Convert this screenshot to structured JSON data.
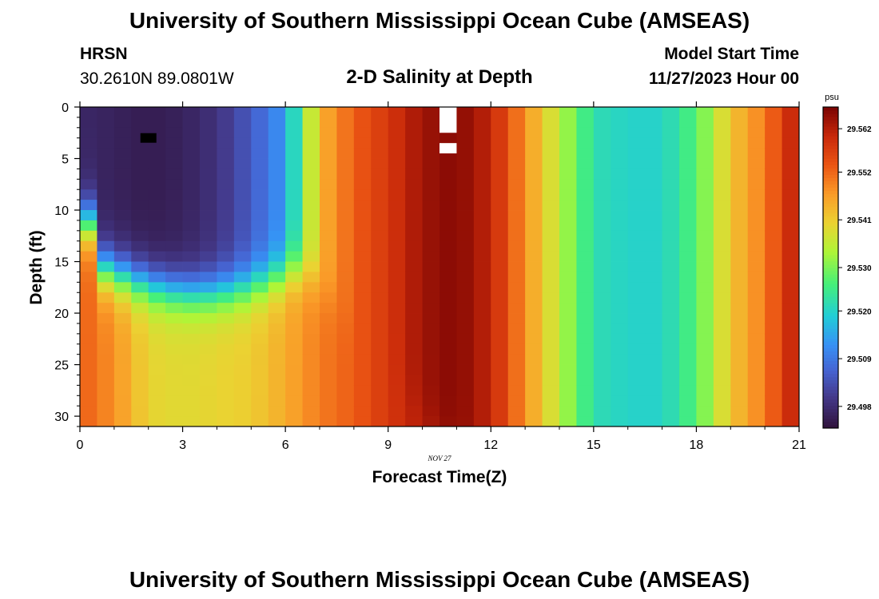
{
  "title_top": "University of Southern Mississippi Ocean Cube (AMSEAS)",
  "title_bottom": "University of Southern Mississippi Ocean Cube (AMSEAS)",
  "station": "HRSN",
  "location": "30.2610N  89.0801W",
  "plot_title": "2-D Salinity at Depth",
  "model_start_label": "Model Start Time",
  "model_start_value": "11/27/2023 Hour 00",
  "chart_data": {
    "type": "heatmap",
    "title": "2-D Salinity at Depth",
    "xlabel": "Forecast Time(Z)",
    "ylabel": "Depth (ft)",
    "x_date_label": "NOV 27",
    "xlim": [
      0,
      21
    ],
    "ylim": [
      31,
      0
    ],
    "x_ticks": [
      0,
      3,
      6,
      9,
      12,
      15,
      18,
      21
    ],
    "y_ticks": [
      0,
      5,
      10,
      15,
      20,
      25,
      30
    ],
    "colorbar": {
      "unit": "psu",
      "range": [
        29.493,
        29.567
      ],
      "ticks": [
        29.498,
        29.509,
        29.52,
        29.53,
        29.541,
        29.552,
        29.562
      ],
      "tick_labels": [
        "29.498",
        "29.509",
        "29.520",
        "29.530",
        "29.541",
        "29.552",
        "29.562"
      ]
    },
    "column_width_hours": 0.5,
    "row_height_ft": 1.0,
    "deep_surface_values_by_hour": {
      "hours": [
        0,
        1,
        2,
        3,
        4,
        5,
        6,
        7,
        8,
        9,
        10,
        11,
        12,
        13,
        14,
        15,
        16,
        17,
        18,
        19,
        20,
        21
      ],
      "surface_psu": [
        29.497,
        29.496,
        29.495,
        29.496,
        29.499,
        29.505,
        29.513,
        29.544,
        29.553,
        29.558,
        29.564,
        29.566,
        29.561,
        29.548,
        29.535,
        29.522,
        29.52,
        29.52,
        29.527,
        29.542,
        29.55,
        29.563
      ],
      "deep_psu": [
        29.553,
        29.548,
        29.54,
        29.539,
        29.54,
        29.541,
        29.545,
        29.55,
        29.553,
        29.558,
        29.562,
        29.563,
        29.561,
        29.548,
        29.535,
        29.522,
        29.52,
        29.52,
        29.527,
        29.542,
        29.55,
        29.563
      ]
    },
    "missing_cells": [
      {
        "hour": 10.75,
        "depth_from": 0,
        "depth_to": 2.5
      },
      {
        "hour": 10.75,
        "depth_from": 3.5,
        "depth_to": 4.5
      }
    ],
    "marker": {
      "hour": 2.0,
      "depth": 3.0
    }
  }
}
